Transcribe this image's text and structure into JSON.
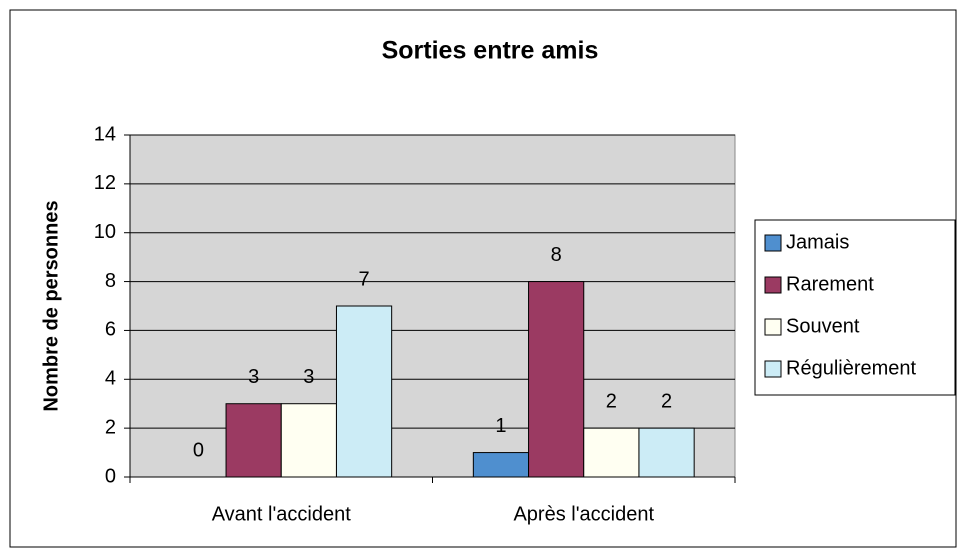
{
  "chart_data": {
    "type": "bar",
    "title": "Sorties entre amis",
    "y_label": "Nombre de personnes",
    "categories": [
      "Avant l'accident",
      "Après l'accident"
    ],
    "series": [
      {
        "name": "Jamais",
        "color": "#4f8fcf",
        "values": [
          0,
          1
        ]
      },
      {
        "name": "Rarement",
        "color": "#9b3a62",
        "values": [
          3,
          8
        ]
      },
      {
        "name": "Souvent",
        "color": "#fffff2",
        "values": [
          3,
          2
        ]
      },
      {
        "name": "Régulièrement",
        "color": "#ccecf6",
        "values": [
          7,
          2
        ]
      }
    ],
    "ylim": [
      0,
      14
    ],
    "yticks": [
      0,
      2,
      4,
      6,
      8,
      10,
      12,
      14
    ],
    "grid": true,
    "legend": "right"
  }
}
